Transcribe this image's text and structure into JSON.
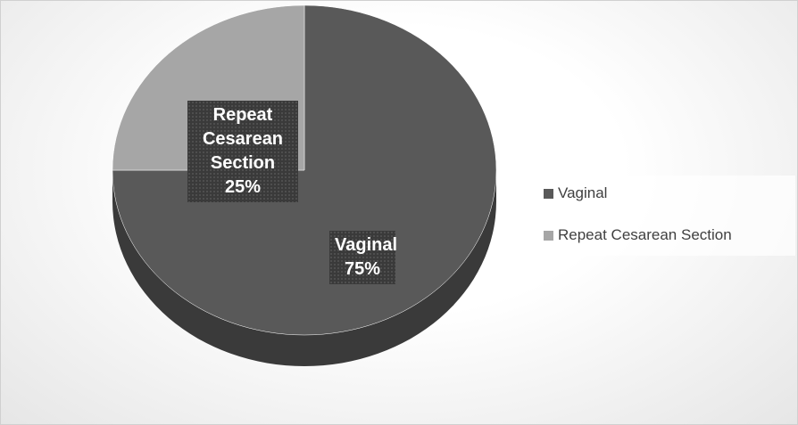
{
  "chart_data": {
    "type": "pie",
    "categories": [
      "Vaginal",
      "Repeat Cesarean Section"
    ],
    "values": [
      75,
      25
    ],
    "value_labels": [
      "75%",
      "25%"
    ],
    "colors": [
      "#595959",
      "#a6a6a6"
    ],
    "legend": "right",
    "three_d": true
  }
}
